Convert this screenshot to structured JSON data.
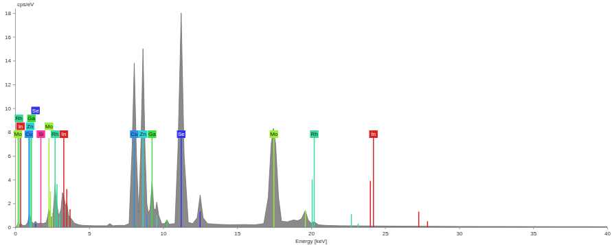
{
  "chart_data": {
    "type": "area",
    "x_label": "Energy [keV]",
    "y_label": "cps/eV",
    "xlim": [
      0,
      40
    ],
    "ylim": [
      0,
      18.4
    ],
    "xticks": [
      0,
      5,
      10,
      15,
      20,
      25,
      30,
      35,
      40
    ],
    "yticks": [
      0,
      2,
      4,
      6,
      8,
      10,
      12,
      14,
      16,
      18
    ],
    "grid": false,
    "x": [
      0.0,
      0.1,
      0.2,
      0.3,
      0.4,
      0.5,
      0.7,
      0.85,
      0.95,
      1.03,
      1.1,
      1.25,
      1.38,
      1.5,
      1.74,
      1.9,
      2.1,
      2.2,
      2.29,
      2.4,
      2.55,
      2.62,
      2.7,
      2.78,
      2.85,
      2.95,
      3.1,
      3.2,
      3.29,
      3.4,
      3.5,
      3.6,
      3.8,
      4.0,
      4.3,
      4.6,
      5.0,
      5.5,
      6.2,
      6.4,
      6.6,
      7.0,
      7.4,
      7.7,
      7.9,
      8.05,
      8.2,
      8.35,
      8.5,
      8.64,
      8.78,
      8.9,
      9.0,
      9.12,
      9.25,
      9.38,
      9.5,
      9.57,
      9.7,
      9.9,
      10.1,
      10.26,
      10.4,
      10.8,
      11.0,
      11.22,
      11.42,
      11.7,
      12.0,
      12.3,
      12.5,
      12.7,
      13.0,
      13.5,
      14.5,
      15.5,
      16.2,
      16.8,
      17.1,
      17.3,
      17.45,
      17.6,
      17.8,
      18.0,
      18.4,
      18.8,
      19.1,
      19.35,
      19.6,
      19.8,
      20.0,
      20.2,
      20.5,
      21.0,
      22.0,
      24.0,
      27.0,
      30.0,
      35.0,
      40.0
    ],
    "series": [
      {
        "color": "#8a8a8a",
        "values": [
          0,
          0.05,
          0.4,
          0.2,
          0.3,
          0.15,
          0.15,
          0.4,
          1.0,
          0.9,
          0.5,
          0.3,
          0.5,
          0.3,
          0.35,
          0.3,
          0.4,
          0.9,
          1.6,
          0.9,
          0.8,
          2.0,
          3.6,
          2.2,
          1.8,
          0.9,
          1.5,
          2.9,
          2.6,
          1.8,
          2.1,
          1.0,
          0.7,
          0.35,
          0.2,
          0.15,
          0.13,
          0.12,
          0.12,
          0.3,
          0.12,
          0.15,
          0.15,
          0.3,
          6.5,
          13.8,
          6.0,
          1.2,
          7.0,
          15.0,
          6.5,
          2.0,
          1.2,
          1.5,
          3.8,
          1.5,
          1.5,
          2.1,
          1.0,
          0.3,
          0.3,
          0.6,
          0.25,
          0.3,
          6.5,
          18.0,
          6.0,
          0.4,
          0.3,
          0.8,
          2.7,
          0.8,
          0.3,
          0.25,
          0.2,
          0.22,
          0.2,
          0.3,
          2.5,
          7.0,
          8.3,
          7.0,
          2.5,
          0.5,
          0.45,
          0.6,
          0.55,
          0.7,
          1.4,
          0.6,
          0.35,
          0.45,
          0.2,
          0.15,
          0.12,
          0.1,
          0.08,
          0.06,
          0.05,
          0.04
        ]
      }
    ],
    "markers": [
      {
        "name": "Cu",
        "color": "#2b8fef",
        "x": [
          0.93,
          8.05,
          8.9
        ],
        "heights": [
          7.5,
          7.5,
          1.0
        ],
        "labels": [
          0.93,
          8.05
        ]
      },
      {
        "name": "Zn",
        "color": "#2ad4d4",
        "x": [
          1.01,
          8.64,
          9.57
        ],
        "heights": [
          7.5,
          7.5,
          1.0
        ],
        "labels": [
          1.01,
          8.64
        ]
      },
      {
        "name": "Ga",
        "color": "#3ddc3d",
        "x": [
          1.1,
          9.25,
          10.26
        ],
        "heights": [
          7.5,
          7.5,
          0.6
        ],
        "labels": [
          1.1,
          9.25
        ]
      },
      {
        "name": "Se",
        "color": "#3333ee",
        "x": [
          1.38,
          11.22,
          12.5
        ],
        "heights": [
          0.3,
          7.5,
          1.3
        ],
        "labels": [
          1.38,
          11.22
        ]
      },
      {
        "name": "Si",
        "color": "#ff3399",
        "x": [
          1.74
        ],
        "heights": [
          7.5
        ],
        "labels": [
          1.74
        ]
      },
      {
        "name": "Mo",
        "color": "#99ee33",
        "x": [
          0.19,
          2.29,
          2.39,
          2.52,
          17.48,
          19.61
        ],
        "heights": [
          7.5,
          7.5,
          3.0,
          1.2,
          7.5,
          1.4
        ],
        "labels": [
          0.19,
          2.29,
          17.48
        ]
      },
      {
        "name": "In",
        "color": "#dd2222",
        "x": [
          0.37,
          3.29,
          3.49,
          3.71,
          24.0,
          24.21,
          27.27,
          27.86
        ],
        "heights": [
          7.5,
          7.5,
          3.2,
          1.5,
          3.9,
          7.5,
          1.3,
          0.5
        ],
        "labels": [
          0.37,
          3.29,
          24.21
        ]
      },
      {
        "name": "Rh",
        "color": "#33dd99",
        "x": [
          0.26,
          2.7,
          2.83,
          3.0,
          20.07,
          20.21,
          22.72,
          23.17
        ],
        "heights": [
          7.5,
          7.5,
          3.6,
          1.0,
          4.0,
          7.5,
          1.1,
          0.3
        ],
        "labels": [
          0.26,
          2.7,
          20.21
        ]
      }
    ]
  }
}
